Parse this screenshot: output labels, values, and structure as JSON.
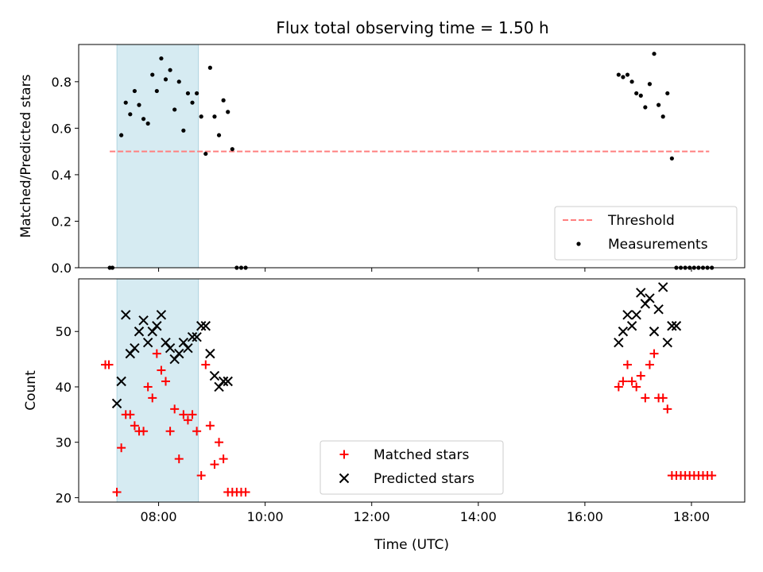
{
  "figure_title": "Flux total observing time = 1.50 h",
  "chart_data": [
    {
      "type": "scatter",
      "panel": "top",
      "title": "Flux total observing time = 1.50 h",
      "xlabel": "",
      "ylabel": "Matched/Predicted stars",
      "x_range": [
        "06:30",
        "19:00"
      ],
      "ylim": [
        0,
        0.96
      ],
      "y_ticks": [
        0.0,
        0.2,
        0.4,
        0.6,
        0.8
      ],
      "y_tick_labels": [
        "0.0",
        "0.2",
        "0.4",
        "0.6",
        "0.8"
      ],
      "x_ticks": [
        "08:00",
        "10:00",
        "12:00",
        "14:00",
        "16:00",
        "18:00"
      ],
      "x_tick_labels_visible": false,
      "shaded_interval": {
        "start": "07:13",
        "end": "08:45",
        "color": "#add8e6"
      },
      "grid": false,
      "legend_placement": "lower right",
      "series": [
        {
          "name": "Threshold",
          "style": "dashed-line",
          "color": "#ff7f7f",
          "x": [
            "07:05",
            "18:20"
          ],
          "y": [
            0.5,
            0.5
          ]
        },
        {
          "name": "Measurements",
          "style": "dot",
          "color": "#000000",
          "x": [
            "07:05",
            "07:08",
            "07:18",
            "07:23",
            "07:28",
            "07:33",
            "07:38",
            "07:43",
            "07:48",
            "07:53",
            "07:58",
            "08:03",
            "08:08",
            "08:13",
            "08:18",
            "08:23",
            "08:28",
            "08:33",
            "08:38",
            "08:43",
            "08:48",
            "08:53",
            "08:58",
            "09:03",
            "09:08",
            "09:13",
            "09:18",
            "09:23",
            "09:28",
            "09:33",
            "09:38",
            "16:38",
            "16:43",
            "16:48",
            "16:53",
            "16:58",
            "17:03",
            "17:08",
            "17:13",
            "17:18",
            "17:23",
            "17:28",
            "17:33",
            "17:38",
            "17:43",
            "17:48",
            "17:53",
            "17:58",
            "18:03",
            "18:08",
            "18:13",
            "18:18",
            "18:23"
          ],
          "y": [
            0,
            0,
            0.57,
            0.71,
            0.66,
            0.76,
            0.7,
            0.64,
            0.62,
            0.83,
            0.76,
            0.9,
            0.81,
            0.85,
            0.68,
            0.8,
            0.59,
            0.75,
            0.71,
            0.75,
            0.65,
            0.49,
            0.86,
            0.65,
            0.57,
            0.72,
            0.67,
            0.51,
            0,
            0,
            0,
            0.83,
            0.82,
            0.83,
            0.8,
            0.75,
            0.74,
            0.69,
            0.79,
            0.92,
            0.7,
            0.65,
            0.75,
            0.47,
            0,
            0,
            0,
            0,
            0,
            0,
            0,
            0,
            0
          ]
        }
      ]
    },
    {
      "type": "scatter",
      "panel": "bottom",
      "xlabel": "Time (UTC)",
      "ylabel": "Count",
      "x_range": [
        "06:30",
        "19:00"
      ],
      "ylim": [
        19.2,
        59.5
      ],
      "y_ticks": [
        20,
        30,
        40,
        50
      ],
      "y_tick_labels": [
        "20",
        "30",
        "40",
        "50"
      ],
      "x_ticks": [
        "08:00",
        "10:00",
        "12:00",
        "14:00",
        "16:00",
        "18:00"
      ],
      "x_tick_labels": [
        "08:00",
        "10:00",
        "12:00",
        "14:00",
        "16:00",
        "18:00"
      ],
      "shaded_interval": {
        "start": "07:13",
        "end": "08:45",
        "color": "#add8e6"
      },
      "grid": false,
      "legend_placement": "lower center",
      "series": [
        {
          "name": "Matched stars",
          "marker": "plus",
          "color": "#ff0000",
          "x": [
            "07:00",
            "07:04",
            "07:13",
            "07:18",
            "07:23",
            "07:28",
            "07:33",
            "07:38",
            "07:43",
            "07:48",
            "07:53",
            "07:58",
            "08:03",
            "08:08",
            "08:13",
            "08:18",
            "08:23",
            "08:28",
            "08:33",
            "08:38",
            "08:43",
            "08:48",
            "08:53",
            "08:58",
            "09:03",
            "09:08",
            "09:13",
            "09:18",
            "09:23",
            "09:28",
            "09:33",
            "09:38",
            "16:38",
            "16:43",
            "16:48",
            "16:53",
            "16:58",
            "17:03",
            "17:08",
            "17:13",
            "17:18",
            "17:23",
            "17:28",
            "17:33",
            "17:38",
            "17:43",
            "17:48",
            "17:53",
            "17:58",
            "18:03",
            "18:08",
            "18:13",
            "18:18",
            "18:23"
          ],
          "y": [
            44,
            44,
            21,
            29,
            35,
            35,
            33,
            32,
            32,
            40,
            38,
            46,
            43,
            41,
            32,
            36,
            27,
            35,
            34,
            35,
            32,
            24,
            44,
            33,
            26,
            30,
            27,
            21,
            21,
            21,
            21,
            21,
            40,
            41,
            44,
            41,
            40,
            42,
            38,
            44,
            46,
            38,
            38,
            36,
            24,
            24,
            24,
            24,
            24,
            24,
            24,
            24,
            24,
            24
          ]
        },
        {
          "name": "Predicted stars",
          "marker": "x",
          "color": "#000000",
          "x": [
            "07:13",
            "07:18",
            "07:23",
            "07:28",
            "07:33",
            "07:38",
            "07:43",
            "07:48",
            "07:53",
            "07:58",
            "08:03",
            "08:08",
            "08:13",
            "08:18",
            "08:23",
            "08:28",
            "08:33",
            "08:38",
            "08:43",
            "08:48",
            "08:53",
            "08:58",
            "09:03",
            "09:08",
            "09:13",
            "09:18",
            "16:38",
            "16:43",
            "16:48",
            "16:53",
            "16:58",
            "17:03",
            "17:08",
            "17:13",
            "17:18",
            "17:23",
            "17:28",
            "17:33",
            "17:38",
            "17:43"
          ],
          "y": [
            37,
            41,
            53,
            46,
            47,
            50,
            52,
            48,
            50,
            51,
            53,
            48,
            47,
            45,
            46,
            48,
            47,
            49,
            49,
            51,
            51,
            46,
            42,
            40,
            41,
            41,
            48,
            50,
            53,
            51,
            53,
            57,
            55,
            56,
            50,
            54,
            58,
            48,
            51,
            51
          ]
        }
      ]
    }
  ]
}
